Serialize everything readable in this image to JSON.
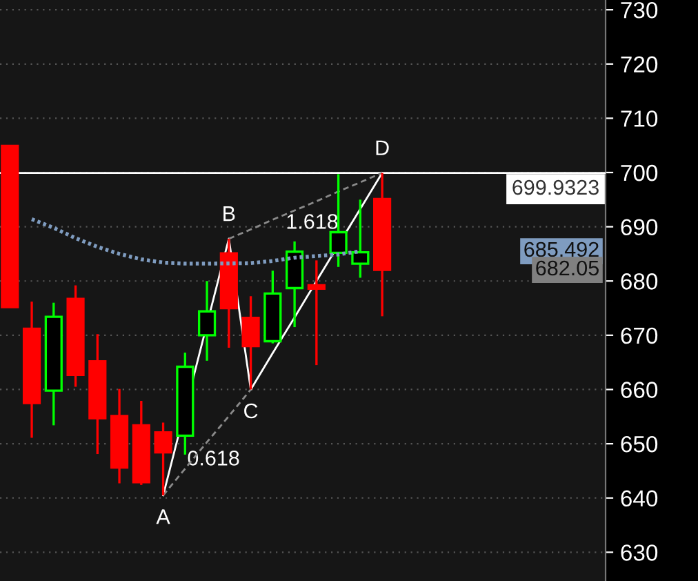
{
  "chart_data": {
    "type": "candlestick",
    "categories": [
      null,
      null,
      null,
      null,
      null,
      null,
      null,
      null,
      null,
      null,
      null,
      null,
      null,
      null,
      null,
      null,
      null,
      null
    ],
    "ohlc": [
      [
        704.9,
        704.9,
        675.2,
        675.2
      ],
      [
        671.2,
        676.2,
        651.1,
        657.5
      ],
      [
        659.8,
        676.0,
        653.4,
        673.4
      ],
      [
        676.7,
        679.2,
        660.5,
        662.7
      ],
      [
        665.2,
        670.2,
        648.1,
        654.7
      ],
      [
        655.1,
        660.1,
        642.7,
        645.6
      ],
      [
        653.4,
        657.9,
        642.4,
        642.9
      ],
      [
        652.1,
        653.9,
        640.5,
        648.4
      ],
      [
        651.5,
        666.8,
        648.0,
        664.2
      ],
      [
        670.0,
        680.0,
        665.3,
        674.4
      ],
      [
        685.1,
        687.8,
        667.7,
        675.0
      ],
      [
        673.2,
        677.2,
        660.0,
        668.0
      ],
      [
        668.9,
        681.9,
        668.5,
        677.7
      ],
      [
        678.7,
        687.3,
        671.5,
        685.4
      ],
      [
        679.2,
        683.8,
        664.5,
        678.6
      ],
      [
        685.2,
        699.7,
        682.6,
        689.0
      ],
      [
        683.2,
        695.0,
        680.6,
        685.3
      ],
      [
        695.1,
        699.93,
        673.5,
        682.05
      ]
    ],
    "colors": [
      "#ff0000",
      "#ff0000",
      "#00ff00",
      "#ff0000",
      "#ff0000",
      "#ff0000",
      "#ff0000",
      "#ff0000",
      "#00ff00",
      "#00ff00",
      "#ff0000",
      "#ff0000",
      "#00ff00",
      "#00ff00",
      "#ff0000",
      "#00ff00",
      "#00ff00",
      "#ff0000"
    ],
    "ylim": [
      624.7,
      731.8
    ],
    "yticks": [
      630,
      640,
      650,
      660,
      670,
      680,
      690,
      700,
      710,
      720,
      730
    ],
    "tick_labels": "y",
    "grid": "y",
    "series": [
      {
        "type": "line",
        "color": "#7f9cc0",
        "line_style": "dotted",
        "values": [
          null,
          691.4,
          689.8,
          687.9,
          686.3,
          685.0,
          684.0,
          683.4,
          683.2,
          683.2,
          null,
          683.3,
          683.7,
          684.3,
          684.6,
          684.9,
          685.492,
          null
        ]
      },
      {
        "type": "line",
        "color": "#ffffff",
        "line_style": "solid",
        "values": [
          null,
          null,
          null,
          null,
          null,
          null,
          null,
          640.5,
          null,
          null,
          687.8,
          660.0,
          666.7,
          673.3,
          680.0,
          null,
          693.3,
          699.93
        ]
      },
      {
        "type": "line",
        "color": "#8a8a8a",
        "line_style": "dashed",
        "values": [
          null,
          null,
          null,
          null,
          null,
          null,
          null,
          640.5,
          645.4,
          650.3,
          655.1,
          660.0,
          null,
          null,
          null,
          null,
          null,
          null
        ]
      },
      {
        "type": "line",
        "color": "#8a8a8a",
        "line_style": "dashed",
        "values": [
          null,
          null,
          null,
          null,
          null,
          null,
          null,
          null,
          null,
          null,
          687.8,
          689.5,
          691.3,
          693.0,
          694.7,
          696.5,
          698.2,
          699.93
        ]
      }
    ],
    "ref_lines": [
      {
        "axis": "y",
        "value": 699.9323,
        "label": "699.9323",
        "color": "#ffffff"
      }
    ],
    "annotations": [
      "A",
      "B",
      "C",
      "D",
      "0.618",
      "1.618",
      "685.492",
      "682.05"
    ]
  }
}
